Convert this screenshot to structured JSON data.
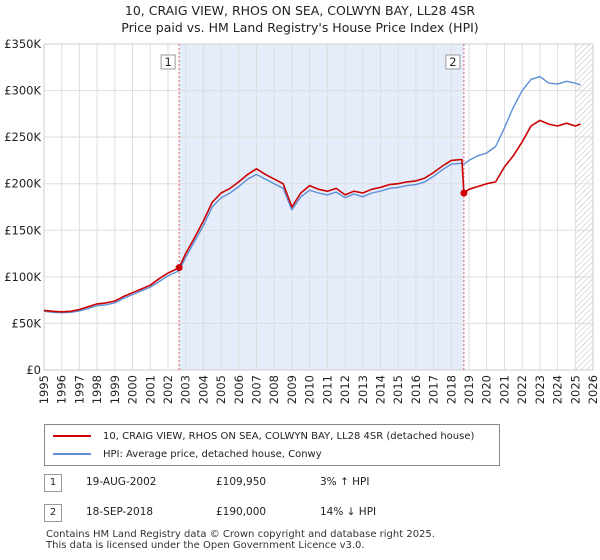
{
  "title_line1": "10, CRAIG VIEW, RHOS ON SEA, COLWYN BAY, LL28 4SR",
  "title_line2": "Price paid vs. HM Land Registry's House Price Index (HPI)",
  "colors": {
    "property": "#cc0000",
    "hpi": "#5b8fd6",
    "shade": "#e6edfa",
    "marker_line": "#e06060",
    "grid": "#dddddd"
  },
  "chart_data": {
    "type": "line",
    "xlim": [
      1995,
      2026
    ],
    "ylim": [
      0,
      350000
    ],
    "x_ticks": [
      1995,
      1996,
      1997,
      1998,
      1999,
      2000,
      2001,
      2002,
      2003,
      2004,
      2005,
      2006,
      2007,
      2008,
      2009,
      2010,
      2011,
      2012,
      2013,
      2014,
      2015,
      2016,
      2017,
      2018,
      2019,
      2020,
      2021,
      2022,
      2023,
      2024,
      2025,
      2026
    ],
    "y_ticks": [
      {
        "value": 0,
        "label": "£0"
      },
      {
        "value": 50000,
        "label": "£50K"
      },
      {
        "value": 100000,
        "label": "£100K"
      },
      {
        "value": 150000,
        "label": "£150K"
      },
      {
        "value": 200000,
        "label": "£200K"
      },
      {
        "value": 250000,
        "label": "£250K"
      },
      {
        "value": 300000,
        "label": "£300K"
      },
      {
        "value": 350000,
        "label": "£350K"
      }
    ],
    "shaded_range": [
      2002.63,
      2018.71
    ],
    "forecast_start": 2025.0,
    "series": [
      {
        "name": "10, CRAIG VIEW, RHOS ON SEA, COLWYN BAY, LL28 4SR (detached house)",
        "key": "property",
        "x": [
          1995.0,
          1995.5,
          1996.0,
          1996.5,
          1997.0,
          1997.5,
          1998.0,
          1998.5,
          1999.0,
          1999.5,
          2000.0,
          2000.5,
          2001.0,
          2001.5,
          2002.0,
          2002.63,
          2003.0,
          2003.5,
          2004.0,
          2004.5,
          2005.0,
          2005.5,
          2006.0,
          2006.5,
          2007.0,
          2007.5,
          2008.0,
          2008.5,
          2009.0,
          2009.5,
          2010.0,
          2010.5,
          2011.0,
          2011.5,
          2012.0,
          2012.5,
          2013.0,
          2013.5,
          2014.0,
          2014.5,
          2015.0,
          2015.5,
          2016.0,
          2016.5,
          2017.0,
          2017.5,
          2018.0,
          2018.6,
          2018.71,
          2019.0,
          2019.5,
          2020.0,
          2020.5,
          2021.0,
          2021.5,
          2022.0,
          2022.5,
          2023.0,
          2023.5,
          2024.0,
          2024.5,
          2025.0,
          2025.3
        ],
        "y": [
          64000,
          63000,
          62500,
          63000,
          65000,
          68000,
          71000,
          72000,
          74000,
          79000,
          83000,
          87000,
          91000,
          98000,
          104000,
          109950,
          125000,
          142000,
          160000,
          180000,
          190000,
          195000,
          202000,
          210000,
          216000,
          210000,
          205000,
          200000,
          175000,
          190000,
          198000,
          194000,
          192000,
          195000,
          188000,
          192000,
          190000,
          194000,
          196000,
          199000,
          200000,
          202000,
          203000,
          206000,
          212000,
          219000,
          225000,
          226000,
          190000,
          194000,
          197000,
          200000,
          202000,
          218000,
          230000,
          245000,
          262000,
          268000,
          264000,
          262000,
          265000,
          262000,
          264000
        ]
      },
      {
        "name": "HPI: Average price, detached house, Conwy",
        "key": "hpi",
        "x": [
          1995.0,
          1995.5,
          1996.0,
          1996.5,
          1997.0,
          1997.5,
          1998.0,
          1998.5,
          1999.0,
          1999.5,
          2000.0,
          2000.5,
          2001.0,
          2001.5,
          2002.0,
          2002.63,
          2003.0,
          2003.5,
          2004.0,
          2004.5,
          2005.0,
          2005.5,
          2006.0,
          2006.5,
          2007.0,
          2007.5,
          2008.0,
          2008.5,
          2009.0,
          2009.5,
          2010.0,
          2010.5,
          2011.0,
          2011.5,
          2012.0,
          2012.5,
          2013.0,
          2013.5,
          2014.0,
          2014.5,
          2015.0,
          2015.5,
          2016.0,
          2016.5,
          2017.0,
          2017.5,
          2018.0,
          2018.6,
          2018.71,
          2019.0,
          2019.5,
          2020.0,
          2020.5,
          2021.0,
          2021.5,
          2022.0,
          2022.5,
          2023.0,
          2023.5,
          2024.0,
          2024.5,
          2025.0,
          2025.3
        ],
        "y": [
          63000,
          62000,
          61500,
          62000,
          63500,
          66000,
          69000,
          70000,
          72000,
          77000,
          81000,
          85000,
          89000,
          95000,
          101000,
          106700,
          121000,
          138000,
          155000,
          175000,
          185000,
          190000,
          197000,
          205000,
          210000,
          205000,
          200000,
          195000,
          172000,
          186000,
          193000,
          190000,
          188000,
          191000,
          185000,
          189000,
          186000,
          190000,
          192000,
          195000,
          196000,
          198000,
          199000,
          202000,
          208000,
          215000,
          221000,
          222000,
          221000,
          225000,
          230000,
          233000,
          240000,
          260000,
          282000,
          300000,
          312000,
          315000,
          308000,
          307000,
          310000,
          308000,
          306000
        ]
      }
    ],
    "annotations": [
      {
        "label": "1",
        "x": 2002.63,
        "y": 109950
      },
      {
        "label": "2",
        "x": 2018.71,
        "y": 190000
      }
    ]
  },
  "legend": {
    "property": "10, CRAIG VIEW, RHOS ON SEA, COLWYN BAY, LL28 4SR (detached house)",
    "hpi": "HPI: Average price, detached house, Conwy"
  },
  "transactions": [
    {
      "num": "1",
      "date": "19-AUG-2002",
      "price": "£109,950",
      "hpi": "3% ↑ HPI"
    },
    {
      "num": "2",
      "date": "18-SEP-2018",
      "price": "£190,000",
      "hpi": "14% ↓ HPI"
    }
  ],
  "footer_line1": "Contains HM Land Registry data © Crown copyright and database right 2025.",
  "footer_line2": "This data is licensed under the Open Government Licence v3.0."
}
